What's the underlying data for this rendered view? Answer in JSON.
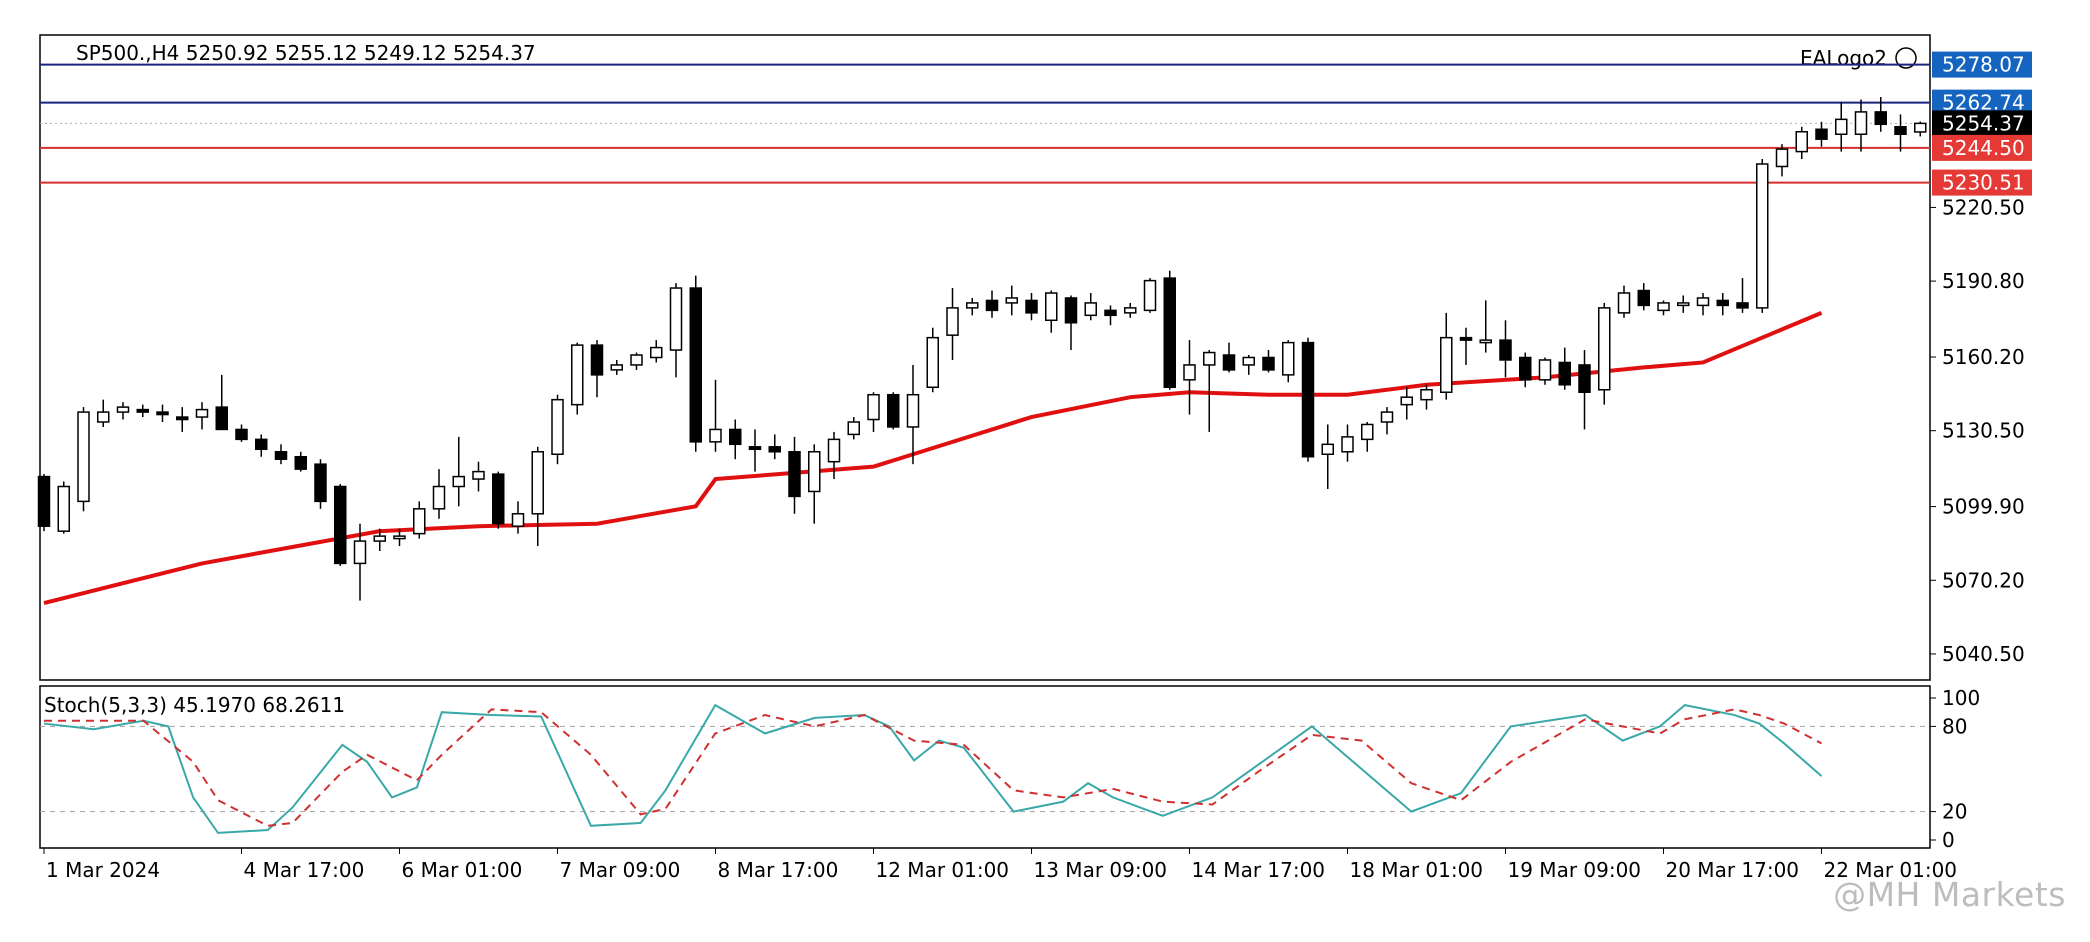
{
  "chart_data": [
    {
      "type": "candlestick",
      "symbol_header": "SP500.,H4  5250.92 5255.12 5249.12 5254.37",
      "indicator_name": "EALogo2",
      "price_axis": {
        "ylim": [
          5030.0,
          5290.0
        ],
        "ticks": [
          "5220.50",
          "5190.80",
          "5160.20",
          "5130.50",
          "5099.90",
          "5070.20",
          "5040.50"
        ],
        "tick_values": [
          5220.5,
          5190.8,
          5160.2,
          5130.5,
          5099.9,
          5070.2,
          5040.5
        ]
      },
      "x_ticks": [
        {
          "label": "1 Mar 2024",
          "bar": 0
        },
        {
          "label": "4 Mar 17:00",
          "bar": 10
        },
        {
          "label": "6 Mar 01:00",
          "bar": 18
        },
        {
          "label": "7 Mar 09:00",
          "bar": 26
        },
        {
          "label": "8 Mar 17:00",
          "bar": 34
        },
        {
          "label": "12 Mar 01:00",
          "bar": 42
        },
        {
          "label": "13 Mar 09:00",
          "bar": 50
        },
        {
          "label": "14 Mar 17:00",
          "bar": 58
        },
        {
          "label": "18 Mar 01:00",
          "bar": 66
        },
        {
          "label": "19 Mar 09:00",
          "bar": 74
        },
        {
          "label": "20 Mar 17:00",
          "bar": 82
        },
        {
          "label": "22 Mar 01:00",
          "bar": 90
        }
      ],
      "horizontal_lines": [
        {
          "value": 5278.07,
          "label": "5278.07",
          "color": "#1a237e",
          "label_bg": "#1565c0"
        },
        {
          "value": 5262.74,
          "label": "5262.74",
          "color": "#1a237e",
          "label_bg": "#1565c0"
        },
        {
          "value": 5254.37,
          "label": "5254.37",
          "color": "#b0b0b0",
          "label_bg": "#000000",
          "dotted": true
        },
        {
          "value": 5244.5,
          "label": "5244.50",
          "color": "#d32f2f",
          "label_bg": "#e53935"
        },
        {
          "value": 5230.51,
          "label": "5230.51",
          "color": "#d32f2f",
          "label_bg": "#e53935"
        }
      ],
      "candles": [
        [
          5112,
          5113,
          5090,
          5092
        ],
        [
          5090,
          5110,
          5089,
          5108
        ],
        [
          5102,
          5140,
          5098,
          5138
        ],
        [
          5134,
          5143,
          5132,
          5138
        ],
        [
          5138,
          5142,
          5135,
          5140
        ],
        [
          5139,
          5141,
          5136,
          5138
        ],
        [
          5138,
          5141,
          5134,
          5137
        ],
        [
          5136,
          5140,
          5130,
          5135
        ],
        [
          5136,
          5142,
          5131,
          5139
        ],
        [
          5140,
          5153,
          5132,
          5131
        ],
        [
          5131,
          5133,
          5126,
          5127
        ],
        [
          5127,
          5129,
          5120,
          5123
        ],
        [
          5122,
          5125,
          5117,
          5119
        ],
        [
          5120,
          5122,
          5114,
          5115
        ],
        [
          5117,
          5119,
          5099,
          5102
        ],
        [
          5108,
          5109,
          5076,
          5077
        ],
        [
          5077,
          5093,
          5062,
          5086
        ],
        [
          5086,
          5091,
          5082,
          5088
        ],
        [
          5087,
          5091,
          5084,
          5088
        ],
        [
          5089,
          5102,
          5087,
          5099
        ],
        [
          5099,
          5115,
          5095,
          5108
        ],
        [
          5108,
          5128,
          5100,
          5112
        ],
        [
          5111,
          5118,
          5106,
          5114
        ],
        [
          5113,
          5114,
          5091,
          5093
        ],
        [
          5092,
          5102,
          5089,
          5097
        ],
        [
          5097,
          5124,
          5084,
          5122
        ],
        [
          5121,
          5145,
          5117,
          5143
        ],
        [
          5141,
          5166,
          5137,
          5165
        ],
        [
          5165,
          5167,
          5144,
          5153
        ],
        [
          5155,
          5159,
          5153,
          5157
        ],
        [
          5157,
          5162,
          5155,
          5161
        ],
        [
          5160,
          5167,
          5158,
          5164
        ],
        [
          5163,
          5190,
          5152,
          5188
        ],
        [
          5188,
          5193,
          5122,
          5126
        ],
        [
          5126,
          5151,
          5122,
          5131
        ],
        [
          5131,
          5135,
          5119,
          5125
        ],
        [
          5124,
          5131,
          5114,
          5123
        ],
        [
          5124,
          5129,
          5119,
          5122
        ],
        [
          5122,
          5128,
          5097,
          5104
        ],
        [
          5106,
          5125,
          5093,
          5122
        ],
        [
          5118,
          5130,
          5111,
          5127
        ],
        [
          5129,
          5136,
          5127,
          5134
        ],
        [
          5135,
          5146,
          5130,
          5145
        ],
        [
          5145,
          5146,
          5131,
          5132
        ],
        [
          5132,
          5157,
          5117,
          5145
        ],
        [
          5148,
          5172,
          5146,
          5168
        ],
        [
          5169,
          5188,
          5159,
          5180
        ],
        [
          5180,
          5184,
          5177,
          5182
        ],
        [
          5183,
          5187,
          5176,
          5179
        ],
        [
          5182,
          5189,
          5177,
          5184
        ],
        [
          5183,
          5186,
          5175,
          5178
        ],
        [
          5175,
          5187,
          5170,
          5186
        ],
        [
          5184,
          5185,
          5163,
          5174
        ],
        [
          5177,
          5186,
          5175,
          5182
        ],
        [
          5179,
          5181,
          5173,
          5177
        ],
        [
          5178,
          5182,
          5176,
          5180
        ],
        [
          5179,
          5192,
          5178,
          5191
        ],
        [
          5192,
          5195,
          5147,
          5148
        ],
        [
          5151,
          5167,
          5137,
          5157
        ],
        [
          5157,
          5163,
          5130,
          5162
        ],
        [
          5161,
          5166,
          5154,
          5155
        ],
        [
          5157,
          5161,
          5153,
          5160
        ],
        [
          5160,
          5163,
          5154,
          5155
        ],
        [
          5153,
          5167,
          5150,
          5166
        ],
        [
          5166,
          5168,
          5118,
          5120
        ],
        [
          5121,
          5133,
          5107,
          5125
        ],
        [
          5122,
          5133,
          5118,
          5128
        ],
        [
          5127,
          5134,
          5122,
          5133
        ],
        [
          5134,
          5140,
          5129,
          5138
        ],
        [
          5141,
          5148,
          5135,
          5144
        ],
        [
          5143,
          5149,
          5139,
          5147
        ],
        [
          5146,
          5178,
          5143,
          5168
        ],
        [
          5168,
          5172,
          5157,
          5167
        ],
        [
          5166,
          5183,
          5162,
          5167
        ],
        [
          5167,
          5175,
          5152,
          5159
        ],
        [
          5160,
          5162,
          5148,
          5151
        ],
        [
          5151,
          5160,
          5149,
          5159
        ],
        [
          5158,
          5164,
          5147,
          5149
        ],
        [
          5157,
          5163,
          5131,
          5146
        ],
        [
          5147,
          5182,
          5141,
          5180
        ],
        [
          5178,
          5189,
          5176,
          5186
        ],
        [
          5187,
          5190,
          5179,
          5181
        ],
        [
          5179,
          5183,
          5177,
          5182
        ],
        [
          5181,
          5185,
          5178,
          5182
        ],
        [
          5181,
          5186,
          5177,
          5184
        ],
        [
          5183,
          5186,
          5177,
          5181
        ],
        [
          5182,
          5192,
          5178,
          5180
        ],
        [
          5180,
          5240,
          5178,
          5238
        ],
        [
          5237,
          5246,
          5233,
          5244
        ],
        [
          5243,
          5253,
          5240,
          5251
        ],
        [
          5252,
          5255,
          5245,
          5248
        ],
        [
          5250,
          5263,
          5243,
          5256
        ],
        [
          5250,
          5264,
          5243,
          5259
        ],
        [
          5259,
          5265,
          5251,
          5254
        ],
        [
          5253,
          5258,
          5243,
          5250
        ],
        [
          5250.92,
          5255.12,
          5249.12,
          5254.37
        ]
      ],
      "ma_color": "#e01010",
      "ma_values": [
        [
          0,
          5061
        ],
        [
          8,
          5077
        ],
        [
          17,
          5090
        ],
        [
          22,
          5092
        ],
        [
          28,
          5093
        ],
        [
          33,
          5100
        ],
        [
          34,
          5111
        ],
        [
          42,
          5116
        ],
        [
          46,
          5126
        ],
        [
          50,
          5136
        ],
        [
          55,
          5144
        ],
        [
          58,
          5146
        ],
        [
          62,
          5145
        ],
        [
          66,
          5145
        ],
        [
          70,
          5149
        ],
        [
          76,
          5152
        ],
        [
          81,
          5156
        ],
        [
          84,
          5158
        ],
        [
          90,
          5178
        ]
      ]
    },
    {
      "type": "line",
      "indicator_label": "Stoch(5,3,3) 45.1970 68.2611",
      "ylim": [
        0,
        100
      ],
      "ticks": [
        "100",
        "80",
        "20",
        "0"
      ],
      "tick_values": [
        100,
        80,
        20,
        0
      ],
      "levels": [
        80,
        20
      ],
      "series": [
        {
          "key": "main",
          "color": "#39a8a8",
          "dashed": false,
          "values": [
            [
              0,
              82
            ],
            [
              4,
              78
            ],
            [
              8,
              84
            ],
            [
              10,
              80
            ],
            [
              12,
              30
            ],
            [
              14,
              5
            ],
            [
              18,
              7
            ],
            [
              20,
              23
            ],
            [
              24,
              67
            ],
            [
              26,
              55
            ],
            [
              28,
              30
            ],
            [
              30,
              37
            ],
            [
              32,
              90
            ],
            [
              36,
              88
            ],
            [
              40,
              87
            ],
            [
              44,
              10
            ],
            [
              48,
              12
            ],
            [
              50,
              35
            ],
            [
              54,
              95
            ],
            [
              58,
              75
            ],
            [
              62,
              86
            ],
            [
              66,
              88
            ],
            [
              68,
              80
            ],
            [
              70,
              56
            ],
            [
              72,
              70
            ],
            [
              74,
              65
            ],
            [
              78,
              20
            ],
            [
              82,
              27
            ],
            [
              84,
              40
            ],
            [
              86,
              30
            ],
            [
              90,
              17
            ],
            [
              94,
              30
            ],
            [
              98,
              55
            ],
            [
              102,
              80
            ],
            [
              106,
              50
            ],
            [
              110,
              20
            ],
            [
              114,
              33
            ],
            [
              118,
              80
            ],
            [
              124,
              88
            ],
            [
              127,
              70
            ],
            [
              130,
              80
            ],
            [
              132,
              95
            ],
            [
              136,
              88
            ],
            [
              138,
              82
            ],
            [
              140,
              68
            ],
            [
              143,
              45
            ]
          ]
        },
        {
          "key": "signal",
          "color": "#d03030",
          "dashed": true,
          "values": [
            [
              0,
              84
            ],
            [
              8,
              84
            ],
            [
              12,
              55
            ],
            [
              14,
              28
            ],
            [
              18,
              10
            ],
            [
              20,
              12
            ],
            [
              24,
              48
            ],
            [
              26,
              60
            ],
            [
              30,
              42
            ],
            [
              32,
              60
            ],
            [
              36,
              92
            ],
            [
              40,
              90
            ],
            [
              44,
              60
            ],
            [
              48,
              18
            ],
            [
              50,
              22
            ],
            [
              54,
              75
            ],
            [
              58,
              88
            ],
            [
              62,
              80
            ],
            [
              66,
              88
            ],
            [
              70,
              70
            ],
            [
              74,
              67
            ],
            [
              78,
              35
            ],
            [
              82,
              30
            ],
            [
              86,
              36
            ],
            [
              90,
              27
            ],
            [
              94,
              25
            ],
            [
              98,
              50
            ],
            [
              102,
              74
            ],
            [
              106,
              70
            ],
            [
              110,
              40
            ],
            [
              114,
              28
            ],
            [
              118,
              55
            ],
            [
              124,
              85
            ],
            [
              127,
              80
            ],
            [
              130,
              75
            ],
            [
              132,
              85
            ],
            [
              136,
              92
            ],
            [
              138,
              88
            ],
            [
              140,
              82
            ],
            [
              143,
              68
            ]
          ]
        }
      ]
    }
  ],
  "watermark": "@MH Markets"
}
